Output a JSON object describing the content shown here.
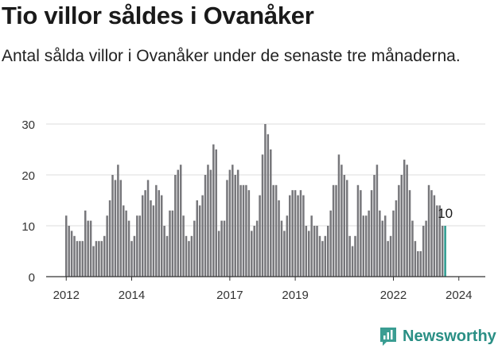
{
  "title": "Tio villor såldes i Ovanåker",
  "subtitle": "Antal sålda villor i Ovanåker under de senaste tre månaderna.",
  "brand": {
    "name": "Newsworthy",
    "icon": "newsworthy-logo-icon"
  },
  "colors": {
    "bar": "#77777b",
    "highlight": "#2a9a8e",
    "grid": "#dddddd",
    "axis": "#333333",
    "brand": "#2a8f85"
  },
  "chart_data": {
    "type": "bar",
    "title": "Tio villor såldes i Ovanåker",
    "subtitle": "Antal sålda villor i Ovanåker under de senaste tre månaderna.",
    "xlabel": "",
    "ylabel": "",
    "ylim": [
      0,
      30
    ],
    "yticks": [
      0,
      10,
      20,
      30
    ],
    "grid": true,
    "x_tick_labels": [
      "2012",
      "2014",
      "2017",
      "2019",
      "2022",
      "2024"
    ],
    "x_tick_indices": [
      0,
      24,
      60,
      84,
      120,
      144
    ],
    "values": [
      12,
      10,
      9,
      8,
      7,
      7,
      7,
      13,
      11,
      11,
      6,
      7,
      7,
      7,
      8,
      12,
      15,
      20,
      19,
      22,
      19,
      14,
      13,
      11,
      7,
      8,
      12,
      12,
      16,
      17,
      19,
      15,
      14,
      18,
      17,
      16,
      10,
      8,
      13,
      13,
      20,
      21,
      22,
      12,
      8,
      7,
      8,
      11,
      15,
      14,
      16,
      20,
      22,
      21,
      26,
      25,
      9,
      11,
      11,
      19,
      21,
      22,
      20,
      21,
      18,
      18,
      18,
      17,
      9,
      10,
      11,
      16,
      24,
      30,
      28,
      25,
      18,
      18,
      15,
      11,
      9,
      12,
      16,
      17,
      17,
      16,
      17,
      16,
      10,
      9,
      12,
      10,
      10,
      8,
      7,
      8,
      10,
      13,
      18,
      18,
      24,
      22,
      20,
      19,
      8,
      6,
      8,
      18,
      17,
      12,
      12,
      13,
      17,
      20,
      22,
      13,
      11,
      12,
      7,
      8,
      13,
      15,
      18,
      20,
      23,
      22,
      17,
      11,
      7,
      5,
      5,
      10,
      11,
      18,
      17,
      16,
      14,
      14,
      10,
      10
    ],
    "highlight_last": 1,
    "last_label": "10"
  }
}
